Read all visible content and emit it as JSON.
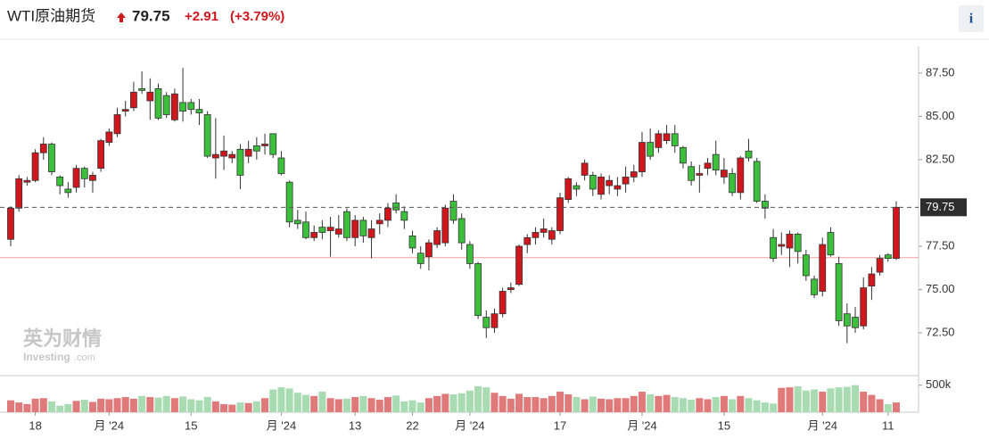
{
  "header": {
    "title": "WTI原油期货",
    "price": "79.75",
    "change": "+2.91",
    "change_pct": "(+3.79%)",
    "info_button": "i"
  },
  "watermark": {
    "cn": "英为财情",
    "brand": "Investing",
    "domain": ".com"
  },
  "chart_data": {
    "type": "candlestick",
    "open": [
      77.9,
      79.7,
      81.2,
      81.3,
      82.9,
      83.4,
      81.5,
      80.8,
      80.9,
      82.0,
      81.3,
      82.0,
      83.5,
      84.0,
      85.3,
      85.5,
      86.6,
      85.9,
      86.6,
      86.2,
      84.8,
      85.8,
      85.8,
      85.4,
      85.1,
      82.6,
      82.7,
      82.6,
      83.1,
      82.7,
      83.3,
      83.3,
      84.0,
      82.6,
      81.2,
      79.0,
      78.9,
      78.0,
      78.6,
      78.4,
      78.2,
      79.5,
      78.0,
      79.0,
      78.0,
      78.8,
      79.0,
      80.0,
      79.5,
      78.1,
      77.1,
      76.9,
      77.6,
      77.7,
      80.1,
      79.1,
      77.6,
      76.5,
      73.4,
      72.8,
      73.6,
      75.0,
      75.3,
      77.6,
      78.0,
      78.3,
      77.9,
      78.4,
      80.2,
      81.0,
      81.6,
      81.6,
      80.5,
      81.0,
      80.8,
      81.1,
      81.5,
      81.8,
      83.5,
      83.2,
      83.6,
      84.0,
      83.2,
      82.1,
      81.6,
      82.0,
      82.8,
      81.5,
      81.7,
      80.6,
      83.0,
      82.4,
      80.1,
      78.0,
      77.5,
      77.4,
      78.2,
      77.0,
      75.6,
      74.9,
      78.3,
      76.5,
      73.6,
      73.4,
      72.9,
      75.2,
      76.0,
      77.0,
      76.8
    ],
    "high": [
      79.8,
      81.6,
      81.5,
      83.1,
      83.8,
      83.5,
      81.6,
      81.2,
      82.2,
      82.1,
      81.8,
      83.7,
      84.3,
      85.5,
      85.9,
      87.0,
      87.6,
      87.2,
      86.9,
      86.4,
      86.6,
      87.8,
      86.0,
      86.0,
      85.3,
      84.9,
      83.9,
      83.0,
      83.4,
      83.6,
      83.8,
      84.0,
      84.0,
      83.0,
      81.3,
      79.6,
      79.5,
      78.7,
      79.0,
      79.2,
      79.3,
      79.7,
      79.3,
      79.2,
      79.0,
      79.4,
      80.0,
      80.5,
      79.8,
      78.4,
      77.5,
      77.9,
      78.6,
      79.9,
      80.5,
      79.4,
      77.8,
      76.6,
      73.8,
      73.9,
      75.1,
      75.4,
      77.6,
      78.2,
      78.6,
      79.1,
      78.6,
      80.6,
      81.5,
      81.2,
      82.5,
      81.8,
      81.7,
      81.6,
      81.5,
      82.1,
      82.2,
      84.1,
      84.3,
      84.2,
      84.5,
      84.5,
      83.3,
      82.4,
      82.2,
      82.6,
      83.6,
      82.6,
      82.0,
      82.7,
      83.7,
      82.6,
      80.5,
      78.5,
      78.3,
      78.4,
      78.3,
      77.3,
      75.8,
      78.0,
      78.6,
      76.9,
      74.2,
      74.0,
      75.7,
      76.3,
      77.0,
      77.1,
      80.1
    ],
    "low": [
      77.5,
      79.5,
      81.0,
      81.2,
      82.5,
      81.6,
      80.5,
      80.3,
      80.6,
      80.9,
      80.6,
      81.8,
      83.3,
      83.8,
      85.0,
      85.3,
      86.3,
      84.8,
      84.8,
      84.9,
      84.7,
      84.7,
      85.1,
      84.5,
      82.6,
      81.4,
      81.9,
      82.3,
      80.8,
      82.3,
      82.5,
      82.8,
      82.6,
      81.6,
      78.6,
      78.5,
      77.9,
      77.8,
      77.9,
      76.9,
      78.0,
      77.8,
      77.5,
      77.7,
      76.8,
      78.2,
      78.6,
      79.4,
      78.5,
      77.1,
      76.2,
      76.1,
      77.4,
      77.5,
      78.8,
      77.3,
      76.2,
      73.3,
      72.2,
      72.5,
      73.4,
      74.8,
      75.2,
      77.1,
      77.6,
      78.0,
      77.6,
      78.2,
      80.0,
      80.4,
      81.3,
      80.4,
      80.2,
      80.5,
      80.4,
      80.6,
      81.2,
      81.5,
      82.5,
      82.9,
      83.4,
      82.9,
      82.0,
      81.0,
      80.6,
      81.6,
      81.6,
      81.1,
      80.4,
      80.2,
      82.4,
      80.0,
      79.1,
      76.6,
      77.0,
      76.3,
      76.5,
      75.5,
      74.5,
      74.6,
      76.9,
      72.9,
      71.9,
      72.5,
      72.7,
      74.4,
      75.8,
      76.6,
      76.7
    ],
    "close": [
      79.7,
      81.4,
      81.3,
      82.9,
      83.4,
      81.8,
      81.0,
      80.6,
      82.0,
      81.4,
      81.6,
      83.6,
      84.1,
      85.1,
      85.4,
      86.4,
      86.5,
      86.4,
      84.9,
      85.1,
      86.3,
      85.3,
      85.4,
      85.2,
      82.7,
      82.8,
      83.0,
      82.8,
      81.6,
      83.1,
      83.0,
      83.4,
      82.8,
      81.7,
      78.9,
      78.8,
      78.0,
      78.3,
      78.3,
      78.6,
      78.5,
      78.0,
      79.0,
      78.1,
      78.5,
      79.0,
      79.7,
      79.6,
      79.0,
      77.4,
      76.5,
      77.7,
      78.4,
      79.7,
      79.0,
      77.7,
      76.5,
      73.5,
      72.8,
      73.6,
      74.9,
      75.1,
      77.5,
      78.0,
      78.3,
      78.5,
      78.4,
      80.3,
      81.4,
      80.8,
      82.3,
      80.8,
      81.5,
      81.3,
      81.0,
      81.5,
      81.8,
      83.5,
      82.7,
      84.0,
      84.0,
      83.3,
      82.3,
      81.3,
      81.7,
      82.3,
      81.9,
      81.9,
      80.6,
      82.6,
      82.6,
      80.1,
      79.7,
      76.8,
      77.6,
      78.2,
      77.2,
      75.8,
      74.7,
      77.6,
      77.0,
      73.2,
      72.9,
      72.8,
      75.1,
      75.9,
      76.8,
      76.8,
      79.75
    ],
    "volume": [
      220000,
      180000,
      150000,
      250000,
      260000,
      200000,
      120000,
      150000,
      210000,
      230000,
      190000,
      250000,
      240000,
      260000,
      280000,
      250000,
      300000,
      280000,
      270000,
      300000,
      260000,
      290000,
      240000,
      220000,
      280000,
      200000,
      150000,
      140000,
      180000,
      170000,
      200000,
      260000,
      420000,
      460000,
      440000,
      360000,
      320000,
      300000,
      380000,
      260000,
      240000,
      250000,
      280000,
      300000,
      260000,
      230000,
      280000,
      310000,
      200000,
      220000,
      180000,
      260000,
      300000,
      340000,
      330000,
      350000,
      400000,
      480000,
      460000,
      360000,
      300000,
      250000,
      340000,
      280000,
      280000,
      260000,
      300000,
      380000,
      330000,
      280000,
      240000,
      290000,
      250000,
      240000,
      260000,
      260000,
      300000,
      380000,
      330000,
      300000,
      320000,
      280000,
      260000,
      230000,
      260000,
      240000,
      280000,
      300000,
      240000,
      300000,
      260000,
      220000,
      180000,
      160000,
      450000,
      460000,
      480000,
      400000,
      420000,
      380000,
      440000,
      460000,
      470000,
      500000,
      380000,
      320000,
      240000,
      150000,
      180000
    ],
    "up_color": "#d0171d",
    "down_color": "#3cc03c",
    "up_volume_color": "#e07a7a",
    "down_volume_color": "#a9dbb3",
    "ylim": [
      70.08,
      88.63
    ],
    "yticks": [
      {
        "value": 87.5,
        "label": "87.50"
      },
      {
        "value": 85,
        "label": "85.00"
      },
      {
        "value": 82.5,
        "label": "82.50"
      },
      {
        "value": 77.5,
        "label": "77.50"
      },
      {
        "value": 75,
        "label": "75.00"
      },
      {
        "value": 72.5,
        "label": "72.50"
      }
    ],
    "volume_lim": [
      0,
      660000
    ],
    "volume_ticks": [
      {
        "value": 500000,
        "label": "500k"
      }
    ],
    "xticks": [
      {
        "value": 3,
        "label": "18"
      },
      {
        "value": 12,
        "label": "月 '24"
      },
      {
        "value": 22,
        "label": "15"
      },
      {
        "value": 33,
        "label": "月 '24"
      },
      {
        "value": 42,
        "label": "13"
      },
      {
        "value": 49,
        "label": "22"
      },
      {
        "value": 56,
        "label": "月 '24"
      },
      {
        "value": 67,
        "label": "17"
      },
      {
        "value": 77,
        "label": "月 '24"
      },
      {
        "value": 87,
        "label": "15"
      },
      {
        "value": 99,
        "label": "月 '24"
      },
      {
        "value": 107,
        "label": "11"
      }
    ],
    "last_price": 79.75,
    "prev_close": 76.84,
    "grid": false
  }
}
